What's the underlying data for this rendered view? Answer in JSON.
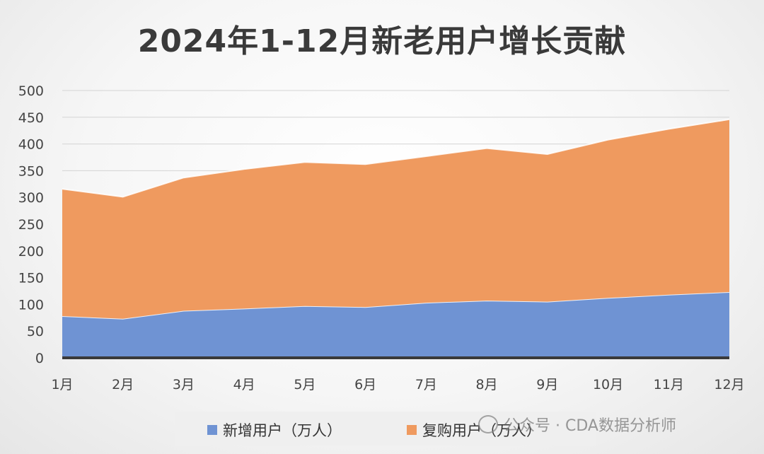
{
  "chart_data": {
    "type": "area",
    "stacked": true,
    "title": "2024年1-12月新老用户增长贡献",
    "categories": [
      "1月",
      "2月",
      "3月",
      "4月",
      "5月",
      "6月",
      "7月",
      "8月",
      "9月",
      "10月",
      "11月",
      "12月"
    ],
    "series": [
      {
        "name": "新增用户（万人）",
        "color": "#6f93d3",
        "values": [
          78,
          73,
          88,
          92,
          97,
          95,
          103,
          107,
          105,
          112,
          118,
          123
        ]
      },
      {
        "name": "复购用户（万人）",
        "color": "#ef9a5f",
        "values": [
          238,
          228,
          249,
          261,
          269,
          267,
          274,
          285,
          276,
          296,
          310,
          323
        ]
      }
    ],
    "ylim": [
      0,
      500
    ],
    "yticks": [
      0,
      50,
      100,
      150,
      200,
      250,
      300,
      350,
      400,
      450,
      500
    ],
    "grid": true,
    "legend_position": "bottom"
  },
  "watermark": {
    "text": "公众号 · CDA数据分析师"
  }
}
